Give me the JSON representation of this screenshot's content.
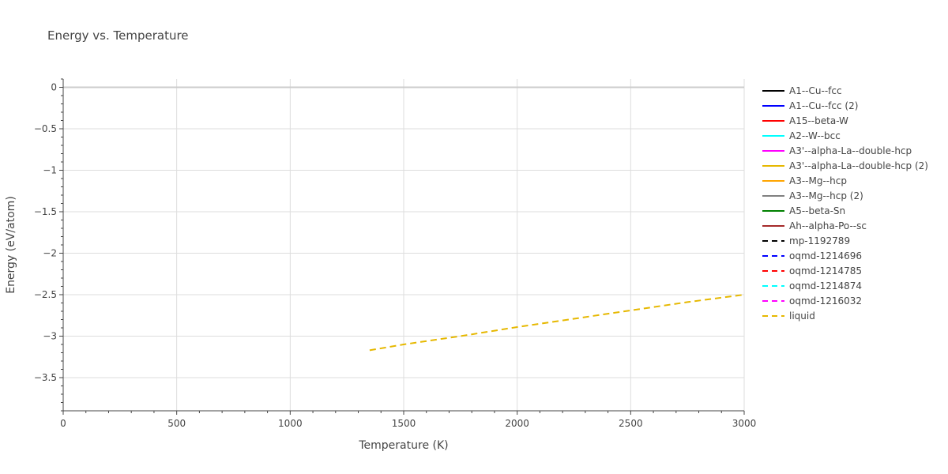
{
  "chart_data": {
    "type": "line",
    "title": "Energy vs. Temperature",
    "xlabel": "Temperature (K)",
    "ylabel": "Energy (eV/atom)",
    "xlim": [
      0,
      3000
    ],
    "ylim": [
      -3.9,
      0.1
    ],
    "xticks": [
      0,
      500,
      1000,
      1500,
      2000,
      2500,
      3000
    ],
    "yticks": [
      0,
      -0.5,
      -1,
      -1.5,
      -2,
      -2.5,
      -3,
      -3.5
    ],
    "ytick_labels": [
      "0",
      "−0.5",
      "−1",
      "−1.5",
      "−2",
      "−2.5",
      "−3",
      "−3.5"
    ],
    "grid": true,
    "legend_position": "right",
    "series": [
      {
        "name": "A1--Cu--fcc",
        "color": "#000000",
        "dash": "solid",
        "x": [],
        "y": []
      },
      {
        "name": "A1--Cu--fcc (2)",
        "color": "#0000ff",
        "dash": "solid",
        "x": [],
        "y": []
      },
      {
        "name": "A15--beta-W",
        "color": "#ff0000",
        "dash": "solid",
        "x": [],
        "y": []
      },
      {
        "name": "A2--W--bcc",
        "color": "#00ffff",
        "dash": "solid",
        "x": [],
        "y": []
      },
      {
        "name": "A3'--alpha-La--double-hcp",
        "color": "#ff00ff",
        "dash": "solid",
        "x": [],
        "y": []
      },
      {
        "name": "A3'--alpha-La--double-hcp (2)",
        "color": "#e6b800",
        "dash": "solid",
        "x": [],
        "y": []
      },
      {
        "name": "A3--Mg--hcp",
        "color": "#ffa500",
        "dash": "solid",
        "x": [],
        "y": []
      },
      {
        "name": "A3--Mg--hcp (2)",
        "color": "#808080",
        "dash": "solid",
        "x": [],
        "y": []
      },
      {
        "name": "A5--beta-Sn",
        "color": "#008000",
        "dash": "solid",
        "x": [],
        "y": []
      },
      {
        "name": "Ah--alpha-Po--sc",
        "color": "#a52a2a",
        "dash": "solid",
        "x": [],
        "y": []
      },
      {
        "name": "mp-1192789",
        "color": "#000000",
        "dash": "dash",
        "x": [],
        "y": []
      },
      {
        "name": "oqmd-1214696",
        "color": "#0000ff",
        "dash": "dash",
        "x": [],
        "y": []
      },
      {
        "name": "oqmd-1214785",
        "color": "#ff0000",
        "dash": "dash",
        "x": [],
        "y": []
      },
      {
        "name": "oqmd-1214874",
        "color": "#00ffff",
        "dash": "dash",
        "x": [],
        "y": []
      },
      {
        "name": "oqmd-1216032",
        "color": "#ff00ff",
        "dash": "dash",
        "x": [],
        "y": []
      },
      {
        "name": "liquid",
        "color": "#e6b800",
        "dash": "dash",
        "x": [
          1350,
          1500,
          1750,
          2000,
          2250,
          2500,
          2750,
          3000
        ],
        "y": [
          -3.17,
          -3.1,
          -3.0,
          -2.89,
          -2.79,
          -2.69,
          -2.59,
          -2.5
        ]
      }
    ]
  }
}
